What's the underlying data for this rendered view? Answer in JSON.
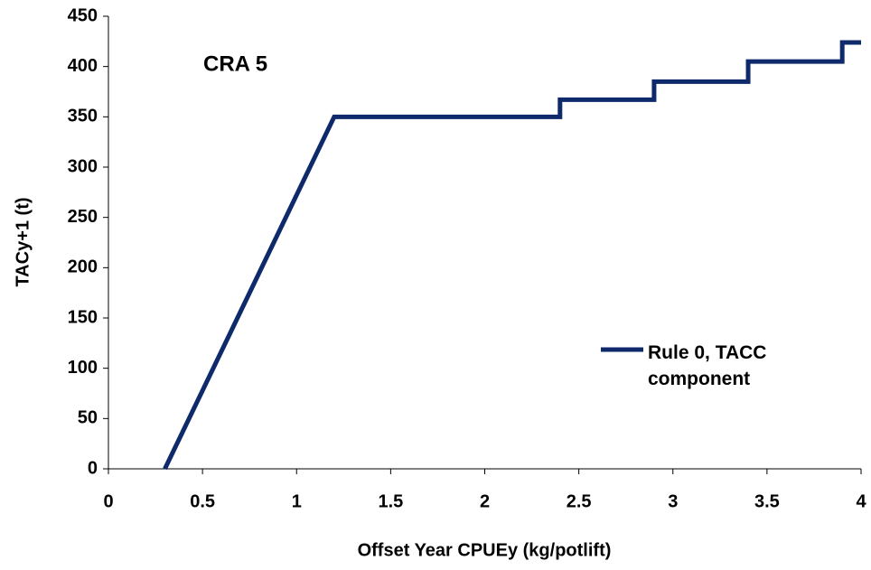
{
  "chart_data": {
    "type": "line",
    "annotation": "CRA 5",
    "xlabel": "Offset Year CPUEy (kg/potlift)",
    "ylabel": "TACy+1 (t)",
    "x": [
      0.3,
      1.2,
      2.4,
      2.4,
      2.9,
      2.9,
      3.4,
      3.4,
      3.9,
      3.9,
      4
    ],
    "series": [
      {
        "name": "Rule 0, TACC component",
        "color": "#0f2a6b",
        "values": [
          0,
          350,
          350,
          367,
          367,
          385,
          385,
          405,
          405,
          424,
          424
        ]
      }
    ],
    "xlim": [
      0,
      4
    ],
    "xticks": [
      0,
      0.5,
      1,
      1.5,
      2,
      2.5,
      3,
      3.5,
      4
    ],
    "ylim": [
      0,
      450
    ],
    "yticks": [
      0,
      50,
      100,
      150,
      200,
      250,
      300,
      350,
      400,
      450
    ],
    "legend": "right"
  }
}
